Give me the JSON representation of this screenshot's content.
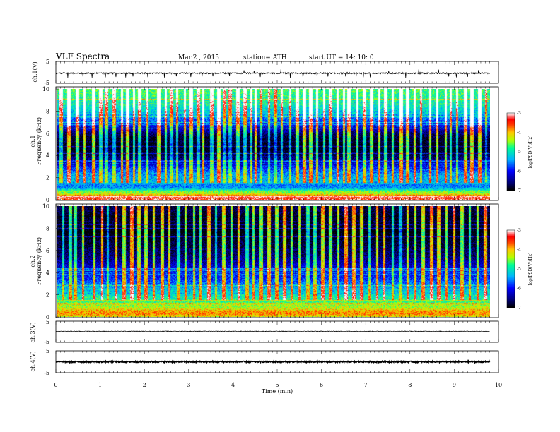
{
  "header": {
    "title": "VLF  Spectra",
    "date": "Mar.2  , 2015",
    "station": "station= ATH",
    "start": "start  UT =   14: 10: 0"
  },
  "colors": {
    "waveform": "#000000",
    "colormap": [
      "#000000",
      "#00008b",
      "#0000ff",
      "#00bfff",
      "#00ff7f",
      "#c8ff00",
      "#ffa500",
      "#ff0000",
      "#ffffff"
    ]
  },
  "chart_data": [
    {
      "type": "line",
      "panel": "ch1-waveform",
      "ylabel": "ch.1(V)",
      "yticks": [
        "5",
        "-5"
      ],
      "ylim": [
        -5,
        5
      ],
      "xlim": [
        0,
        10
      ],
      "data_range_x": [
        0,
        9.8
      ],
      "mean_level": -0.4,
      "noise_amplitude": 0.35,
      "spikes": [
        0.27,
        0.61,
        0.82,
        1.12,
        1.36,
        1.58,
        1.74,
        2.08,
        2.45,
        2.72,
        3.05,
        3.3,
        3.55,
        3.92,
        4.25,
        4.48,
        4.62,
        5.08,
        5.3,
        5.58,
        5.9,
        6.15,
        6.55,
        6.78,
        6.95,
        7.1,
        7.52,
        7.9,
        8.2,
        8.65,
        8.88,
        9.05,
        9.3,
        9.55
      ],
      "spike_amplitude": [
        -2.2,
        1.8
      ]
    },
    {
      "type": "heatmap",
      "panel": "ch1-spectrogram",
      "ylabel": "Frequency  (kHz)",
      "channel_label": "ch.1",
      "yticks": [
        "0",
        "2",
        "4",
        "6",
        "8",
        "10"
      ],
      "ylim": [
        0,
        10
      ],
      "xlim": [
        0,
        10
      ],
      "data_range_x": [
        0,
        9.8
      ],
      "colorbar": {
        "label": "log(PSD(V²/Hz)",
        "ticks": [
          "-3",
          "-4",
          "-5",
          "-6",
          "-7"
        ],
        "range": [
          -7,
          -3
        ]
      },
      "profile": [
        [
          0.0,
          -3.3
        ],
        [
          0.25,
          -3.4
        ],
        [
          0.5,
          -4.3
        ],
        [
          0.75,
          -4.6
        ],
        [
          1.0,
          -5.4
        ],
        [
          1.25,
          -5.6
        ],
        [
          1.5,
          -5.3
        ],
        [
          2.0,
          -5.4
        ],
        [
          2.5,
          -5.6
        ],
        [
          3.0,
          -6.0
        ],
        [
          3.5,
          -6.4
        ],
        [
          4.0,
          -6.8
        ],
        [
          4.5,
          -7.0
        ],
        [
          5.0,
          -7.0
        ],
        [
          5.5,
          -6.9
        ],
        [
          6.0,
          -6.6
        ],
        [
          6.5,
          -6.1
        ],
        [
          7.0,
          -5.8
        ],
        [
          7.5,
          -5.5
        ],
        [
          8.0,
          -5.2
        ],
        [
          8.5,
          -5.0
        ],
        [
          9.0,
          -4.9
        ],
        [
          9.5,
          -4.8
        ],
        [
          10.0,
          -4.7
        ]
      ],
      "impulsive_times": [
        0.1,
        0.28,
        0.46,
        0.62,
        0.83,
        1.0,
        1.12,
        1.3,
        1.48,
        1.6,
        1.75,
        1.88,
        2.05,
        2.3,
        2.46,
        2.6,
        2.73,
        2.9,
        3.05,
        3.2,
        3.32,
        3.5,
        3.66,
        3.8,
        3.93,
        4.1,
        4.26,
        4.4,
        4.5,
        4.63,
        4.8,
        4.95,
        5.1,
        5.28,
        5.45,
        5.6,
        5.75,
        5.9,
        6.05,
        6.2,
        6.35,
        6.5,
        6.62,
        6.8,
        6.97,
        7.12,
        7.3,
        7.45,
        7.6,
        7.8,
        7.95,
        8.1,
        8.25,
        8.45,
        8.62,
        8.8,
        8.92,
        9.07,
        9.25,
        9.4,
        9.58,
        9.72
      ]
    },
    {
      "type": "heatmap",
      "panel": "ch2-spectrogram",
      "ylabel": "Frequency  (kHz)",
      "channel_label": "ch.2",
      "yticks": [
        "0",
        "2",
        "4",
        "6",
        "8",
        "10"
      ],
      "ylim": [
        0,
        10
      ],
      "xlim": [
        0,
        10
      ],
      "data_range_x": [
        0,
        9.8
      ],
      "colorbar": {
        "label": "log(PSD(V²/Hz)",
        "ticks": [
          "-3",
          "-4",
          "-5",
          "-6",
          "-7"
        ],
        "range": [
          -7,
          -3
        ]
      },
      "profile": [
        [
          0.0,
          -4.2
        ],
        [
          0.25,
          -3.8
        ],
        [
          0.5,
          -3.9
        ],
        [
          0.75,
          -4.3
        ],
        [
          1.0,
          -4.4
        ],
        [
          1.25,
          -4.7
        ],
        [
          1.5,
          -4.8
        ],
        [
          2.0,
          -5.1
        ],
        [
          2.5,
          -5.3
        ],
        [
          3.0,
          -5.6
        ],
        [
          3.5,
          -5.9
        ],
        [
          4.0,
          -6.0
        ],
        [
          4.5,
          -6.2
        ],
        [
          5.0,
          -6.4
        ],
        [
          5.5,
          -6.6
        ],
        [
          6.0,
          -6.7
        ],
        [
          6.5,
          -6.8
        ],
        [
          7.0,
          -6.9
        ],
        [
          7.5,
          -7.0
        ],
        [
          8.0,
          -7.0
        ],
        [
          8.5,
          -6.9
        ],
        [
          9.0,
          -6.9
        ],
        [
          9.5,
          -6.8
        ],
        [
          10.0,
          -6.8
        ]
      ],
      "impulsive_times": [
        0.15,
        0.3,
        0.42,
        0.6,
        0.85,
        1.02,
        1.15,
        1.35,
        1.52,
        1.7,
        1.85,
        2.02,
        2.2,
        2.38,
        2.55,
        2.75,
        2.92,
        3.1,
        3.25,
        3.45,
        3.6,
        3.78,
        3.95,
        4.12,
        4.3,
        4.45,
        4.62,
        4.8,
        4.98,
        5.15,
        5.32,
        5.5,
        5.68,
        5.85,
        6.02,
        6.2,
        6.38,
        6.55,
        6.72,
        6.9,
        7.08,
        7.25,
        7.42,
        7.6,
        7.78,
        7.95,
        8.12,
        8.3,
        8.48,
        8.65,
        8.82,
        9.0,
        9.18,
        9.35,
        9.52,
        9.7
      ]
    },
    {
      "type": "line",
      "panel": "ch3-waveform",
      "ylabel": "ch.3(V)",
      "yticks": [
        "5",
        "-5"
      ],
      "ylim": [
        -5,
        5
      ],
      "xlim": [
        0,
        10
      ],
      "data_range_x": [
        0,
        9.8
      ],
      "mean_level": 0.2,
      "noise_amplitude": 0.15
    },
    {
      "type": "line",
      "panel": "ch4-waveform",
      "ylabel": "ch.4(V)",
      "yticks": [
        "5",
        "-5"
      ],
      "ylim": [
        -5,
        5
      ],
      "xlim": [
        0,
        10
      ],
      "data_range_x": [
        0,
        9.8
      ],
      "mean_level": 0.0,
      "noise_amplitude": 0.3
    }
  ],
  "xaxis": {
    "label": "Time  (min)",
    "ticks": [
      "0",
      "1",
      "2",
      "3",
      "4",
      "5",
      "6",
      "7",
      "8",
      "9",
      "10"
    ],
    "range": [
      0,
      10
    ]
  }
}
